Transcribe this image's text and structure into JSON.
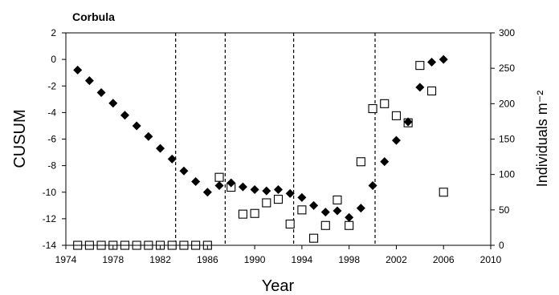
{
  "chart_data": {
    "type": "scatter",
    "title": "Corbula",
    "xlabel": "Year",
    "ylabel_left": "CUSUM",
    "ylabel_right": "Individuals m⁻²",
    "xlim": [
      1974,
      2010
    ],
    "ylim_left": [
      -14,
      2
    ],
    "ylim_right": [
      0,
      300
    ],
    "x_ticks": [
      "1974",
      "1978",
      "1982",
      "1986",
      "1990",
      "1994",
      "1998",
      "2002",
      "2006",
      "2010"
    ],
    "y_left_ticks": [
      "2",
      "0",
      "-2",
      "-4",
      "-6",
      "-8",
      "-10",
      "-12",
      "-14"
    ],
    "y_right_ticks": [
      "300",
      "250",
      "200",
      "150",
      "100",
      "50",
      "0"
    ],
    "grid": false,
    "breakpoints": [
      1983.3,
      1987.5,
      1993.3,
      2000.2
    ],
    "series": [
      {
        "axis": "left",
        "marker": "filled-diamond",
        "color": "#000000",
        "x": [
          1975,
          1976,
          1977,
          1978,
          1979,
          1980,
          1981,
          1982,
          1983,
          1984,
          1985,
          1986,
          1987,
          1988,
          1989,
          1990,
          1991,
          1992,
          1993,
          1994,
          1995,
          1996,
          1997,
          1998,
          1999,
          2000,
          2001,
          2002,
          2003,
          2004,
          2005,
          2006
        ],
        "y": [
          -0.8,
          -1.6,
          -2.5,
          -3.3,
          -4.2,
          -5.0,
          -5.8,
          -6.7,
          -7.5,
          -8.4,
          -9.2,
          -10.0,
          -9.5,
          -9.3,
          -9.6,
          -9.8,
          -9.9,
          -9.8,
          -10.1,
          -10.4,
          -11.0,
          -11.5,
          -11.4,
          -11.9,
          -11.2,
          -9.5,
          -7.7,
          -6.1,
          -4.7,
          -2.1,
          -0.2,
          0.0
        ]
      },
      {
        "axis": "right",
        "marker": "open-square",
        "color": "#000000",
        "x": [
          1975,
          1976,
          1977,
          1978,
          1979,
          1980,
          1981,
          1982,
          1983,
          1984,
          1985,
          1986,
          1987,
          1988,
          1989,
          1990,
          1991,
          1992,
          1993,
          1994,
          1995,
          1996,
          1997,
          1998,
          1999,
          2000,
          2001,
          2002,
          2003,
          2004,
          2005,
          2006
        ],
        "y": [
          0,
          0,
          0,
          0,
          0,
          0,
          0,
          0,
          0,
          0,
          0,
          0,
          96,
          82,
          44,
          45,
          60,
          65,
          30,
          50,
          10,
          28,
          64,
          28,
          118,
          193,
          200,
          183,
          173,
          254,
          218,
          75
        ]
      }
    ]
  }
}
